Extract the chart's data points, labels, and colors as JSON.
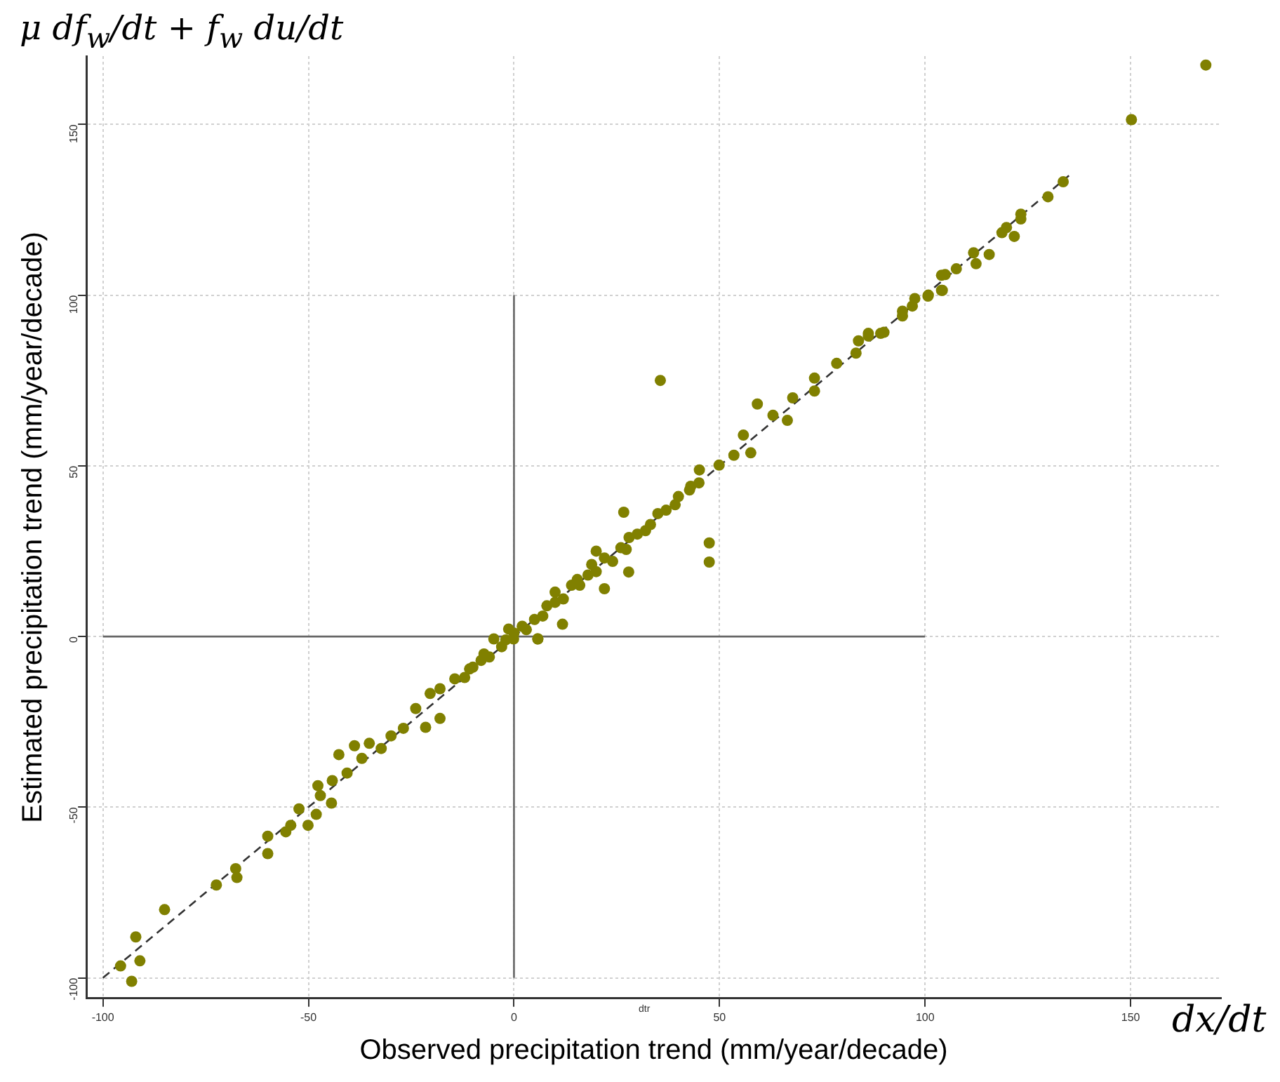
{
  "chart_data": {
    "type": "scatter",
    "xlabel": "Observed precipitation trend (mm/year/decade)",
    "ylabel": "Estimated precipitation trend (mm/year/decade)",
    "annotations": [
      "μ df$_{w}$/dt + f$_{w}$ du/dt",
      "dx/dt",
      "dtr"
    ],
    "xlim": [
      -104,
      172
    ],
    "ylim": [
      -106,
      170
    ],
    "xticks": [
      -100,
      -50,
      0,
      50,
      100,
      150
    ],
    "yticks": [
      -100,
      -50,
      0,
      50,
      100,
      150
    ],
    "grid": true,
    "legend": false,
    "marker": "circle",
    "series": [
      {
        "type": "scatter",
        "color": "#808000",
        "x": [
          -95.7,
          -93,
          -92,
          -91,
          -85,
          -72.4,
          -67.7,
          -67.4,
          -59.9,
          -59.9,
          -55.5,
          -54.3,
          -52.3,
          -50.1,
          -48.1,
          -47.7,
          -47.1,
          -44.4,
          -44.2,
          -42.6,
          -40.6,
          -38.8,
          -37,
          -35.2,
          -32.3,
          -29.9,
          -26.9,
          -23.9,
          -21.5,
          -20.4,
          -18,
          -18,
          -14.4,
          -12,
          -10.8,
          -10,
          -8,
          -7.3,
          -6,
          -4.9,
          -3,
          -2,
          -1.3,
          -0.1,
          0,
          2,
          3,
          5,
          5.8,
          5.8,
          7,
          8,
          10,
          10,
          11.8,
          12,
          14,
          15.4,
          16,
          18,
          18.9,
          20,
          20,
          22,
          22,
          24,
          26,
          26.7,
          27.3,
          27.9,
          28,
          30,
          32,
          33.2,
          35,
          35.6,
          37,
          39.2,
          40,
          42.7,
          43,
          45,
          45.1,
          47.5,
          47.5,
          49.9,
          53.5,
          55.8,
          57.6,
          59.2,
          63,
          66.5,
          67.8,
          73.1,
          73.1,
          78.5,
          83.2,
          83.8,
          86.2,
          86.2,
          89.2,
          90,
          94.5,
          94.5,
          96.9,
          97.5,
          100.7,
          100.8,
          104,
          104,
          104.2,
          104.9,
          107.6,
          111.8,
          112.4,
          115.6,
          118.7,
          119.8,
          121.7,
          123.3,
          123.3,
          129.9,
          133.6,
          150.2,
          168.3
        ],
        "values": [
          -96.5,
          -101,
          -88,
          -95,
          -80,
          -72.8,
          -68,
          -70.6,
          -58.5,
          -63.6,
          -57.2,
          -55.3,
          -50.5,
          -55.3,
          -52.1,
          -43.7,
          -46.6,
          -48.8,
          -42.2,
          -34.6,
          -40,
          -32,
          -35.7,
          -31.3,
          -32.8,
          -29.1,
          -26.9,
          -21.1,
          -26.6,
          -16.7,
          -15.3,
          -24,
          -12.4,
          -12,
          -9.5,
          -9,
          -7,
          -5.1,
          -6,
          -0.7,
          -3,
          -1,
          2.2,
          -0.7,
          1,
          3,
          2,
          5,
          -0.7,
          -0.7,
          6,
          9,
          10,
          13,
          3.6,
          11,
          15,
          16.7,
          15,
          18,
          21.1,
          19,
          25,
          23,
          14,
          22,
          26,
          36.4,
          25.5,
          18.9,
          29,
          30,
          31,
          32.8,
          36,
          75,
          37,
          38.6,
          41,
          42.9,
          44,
          45,
          48.8,
          27.4,
          21.8,
          50.2,
          53.1,
          59,
          53.8,
          68.1,
          64.8,
          63.3,
          69.9,
          75.7,
          71.9,
          80,
          83,
          86.6,
          88,
          88.8,
          88.8,
          89.1,
          93.9,
          95.3,
          96.8,
          99,
          99.7,
          100,
          105.8,
          101.4,
          101.4,
          106,
          107.7,
          112.4,
          109.2,
          111.9,
          118.3,
          119.8,
          117.2,
          123.7,
          122.3,
          128.8,
          133.2,
          151.4,
          167.4
        ]
      },
      {
        "type": "line",
        "color": "#333333",
        "line_style": "dashed",
        "marker": "none",
        "x": [
          -100,
          135
        ],
        "values": [
          -100,
          135
        ]
      },
      {
        "type": "line",
        "color": "#666666",
        "line_style": "solid",
        "marker": "none",
        "x": [
          -100,
          100
        ],
        "values": [
          0,
          0
        ]
      },
      {
        "type": "line",
        "color": "#666666",
        "line_style": "solid",
        "marker": "none",
        "x": [
          0,
          0
        ],
        "values": [
          -100,
          100
        ]
      }
    ]
  }
}
